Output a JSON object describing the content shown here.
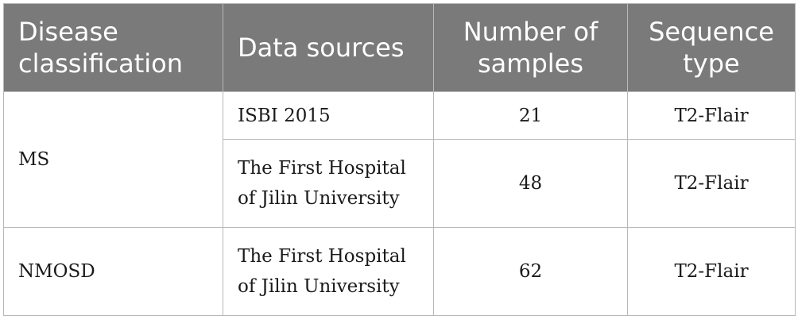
{
  "table": {
    "headers": {
      "disease": "Disease classification",
      "source": "Data sources",
      "samples": "Number of samples",
      "sequence": "Sequence type"
    },
    "groups": [
      {
        "disease": "MS",
        "rows": [
          {
            "source": "ISBI 2015",
            "samples": "21",
            "sequence": "T2-Flair"
          },
          {
            "source": "The First Hospital of Jilin University",
            "samples": "48",
            "sequence": "T2-Flair"
          }
        ]
      },
      {
        "disease": "NMOSD",
        "rows": [
          {
            "source": "The First Hospital of Jilin University",
            "samples": "62",
            "sequence": "T2-Flair"
          }
        ]
      }
    ]
  }
}
